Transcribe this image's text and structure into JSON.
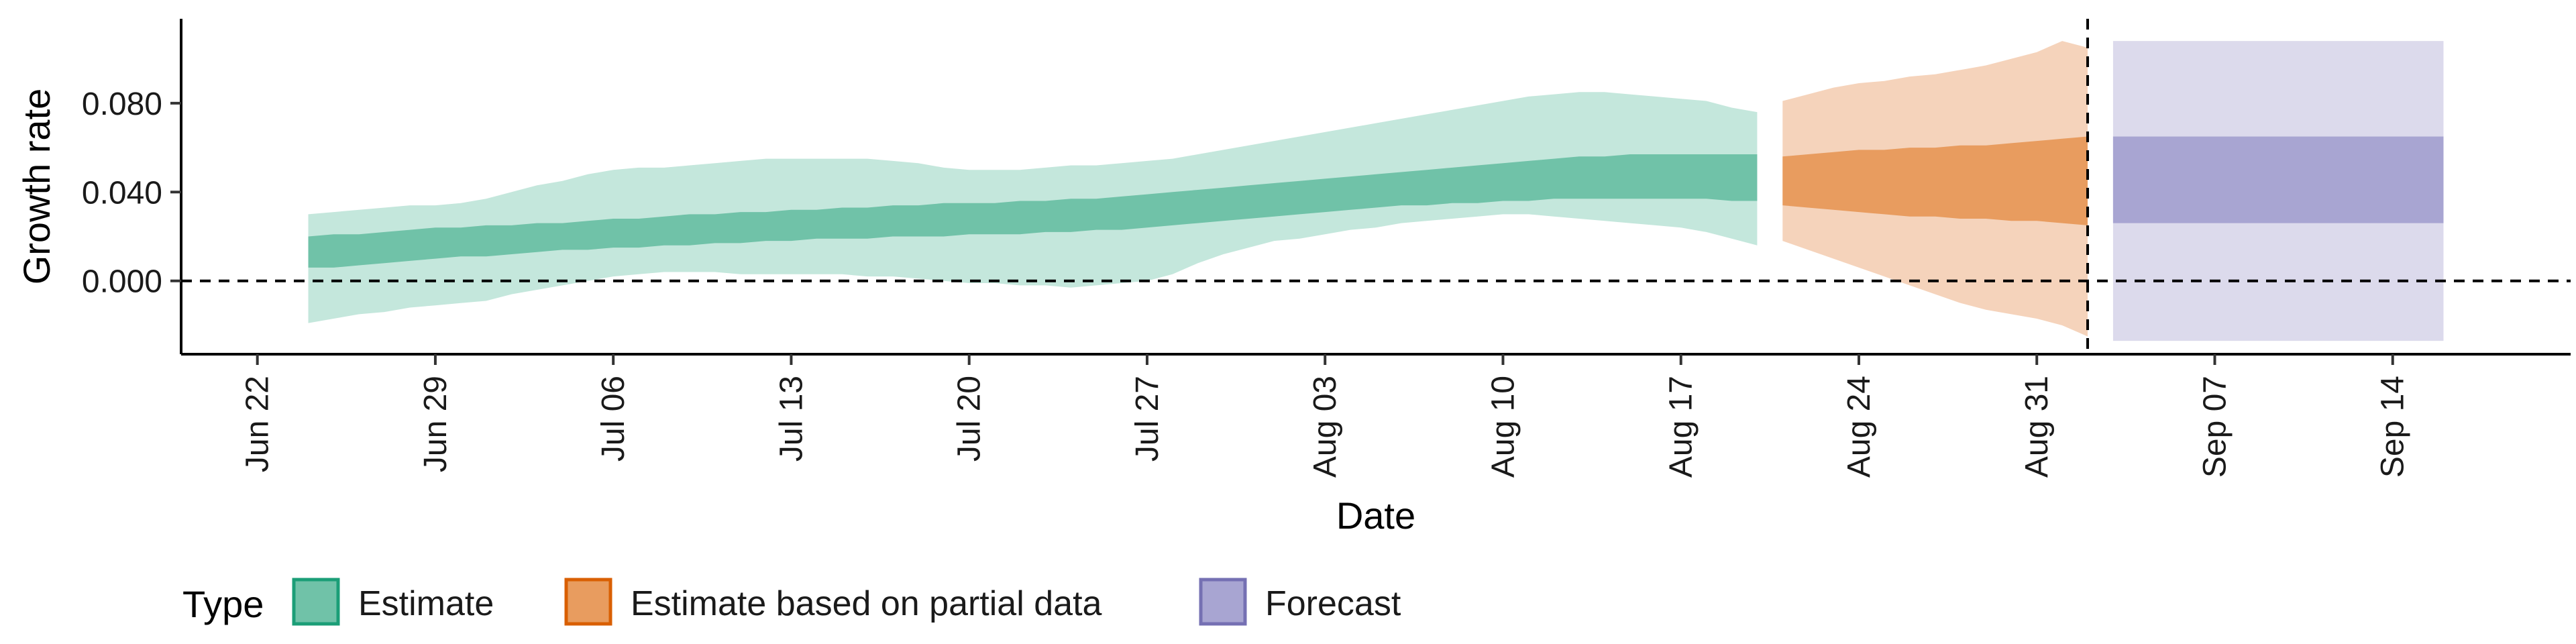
{
  "chart_data": {
    "type": "area",
    "xlabel": "Date",
    "ylabel": "Growth rate",
    "x_range": [
      "2020-06-19",
      "2020-09-21"
    ],
    "ylim": [
      -0.033,
      0.118
    ],
    "y_ticks": [
      0.0,
      0.04,
      0.08
    ],
    "y_tick_labels": [
      "0.000",
      "0.040",
      "0.080"
    ],
    "x_ticks": [
      "2020-06-22",
      "2020-06-29",
      "2020-07-06",
      "2020-07-13",
      "2020-07-20",
      "2020-07-27",
      "2020-08-03",
      "2020-08-10",
      "2020-08-17",
      "2020-08-24",
      "2020-08-31",
      "2020-09-07",
      "2020-09-14"
    ],
    "x_tick_labels": [
      "Jun 22",
      "Jun 29",
      "Jul 06",
      "Jul 13",
      "Jul 20",
      "Jul 27",
      "Aug 03",
      "Aug 10",
      "Aug 17",
      "Aug 24",
      "Aug 31",
      "Sep 07",
      "Sep 14"
    ],
    "reference_lines": {
      "horizontal_y": 0.0,
      "vertical_x": "2020-09-02",
      "style": "dashed"
    },
    "grid": false,
    "legend": {
      "position": "bottom-left",
      "title": "Type",
      "entries": [
        {
          "label": "Estimate",
          "fill": "#70c2a8",
          "border": "#1b9e77"
        },
        {
          "label": "Estimate based on partial data",
          "fill": "#e89c5f",
          "border": "#d95f02"
        },
        {
          "label": "Forecast",
          "fill": "#a8a5d2",
          "border": "#7570b3"
        }
      ]
    },
    "series": [
      {
        "name": "Estimate",
        "outer_color": "#c4e7dc",
        "inner_color": "#70c2a8",
        "x": [
          "2020-06-24",
          "2020-06-25",
          "2020-06-26",
          "2020-06-27",
          "2020-06-28",
          "2020-06-29",
          "2020-06-30",
          "2020-07-01",
          "2020-07-02",
          "2020-07-03",
          "2020-07-04",
          "2020-07-05",
          "2020-07-06",
          "2020-07-07",
          "2020-07-08",
          "2020-07-09",
          "2020-07-10",
          "2020-07-11",
          "2020-07-12",
          "2020-07-13",
          "2020-07-14",
          "2020-07-15",
          "2020-07-16",
          "2020-07-17",
          "2020-07-18",
          "2020-07-19",
          "2020-07-20",
          "2020-07-21",
          "2020-07-22",
          "2020-07-23",
          "2020-07-24",
          "2020-07-25",
          "2020-07-26",
          "2020-07-27",
          "2020-07-28",
          "2020-07-29",
          "2020-07-30",
          "2020-07-31",
          "2020-08-01",
          "2020-08-02",
          "2020-08-03",
          "2020-08-04",
          "2020-08-05",
          "2020-08-06",
          "2020-08-07",
          "2020-08-08",
          "2020-08-09",
          "2020-08-10",
          "2020-08-11",
          "2020-08-12",
          "2020-08-13",
          "2020-08-14",
          "2020-08-15",
          "2020-08-16",
          "2020-08-17",
          "2020-08-18",
          "2020-08-19",
          "2020-08-20"
        ],
        "outer_lower": [
          -0.019,
          -0.017,
          -0.015,
          -0.014,
          -0.012,
          -0.011,
          -0.01,
          -0.009,
          -0.006,
          -0.004,
          -0.002,
          0.0,
          0.002,
          0.003,
          0.004,
          0.004,
          0.004,
          0.003,
          0.003,
          0.003,
          0.003,
          0.003,
          0.002,
          0.002,
          0.001,
          0.0,
          -0.001,
          -0.001,
          -0.002,
          -0.002,
          -0.003,
          -0.002,
          -0.001,
          0.0,
          0.003,
          0.008,
          0.012,
          0.015,
          0.018,
          0.019,
          0.021,
          0.023,
          0.024,
          0.026,
          0.027,
          0.028,
          0.029,
          0.03,
          0.03,
          0.029,
          0.028,
          0.027,
          0.026,
          0.025,
          0.024,
          0.022,
          0.019,
          0.016
        ],
        "inner_lower": [
          0.006,
          0.006,
          0.007,
          0.008,
          0.009,
          0.01,
          0.011,
          0.011,
          0.012,
          0.013,
          0.014,
          0.014,
          0.015,
          0.015,
          0.016,
          0.016,
          0.017,
          0.017,
          0.018,
          0.018,
          0.019,
          0.019,
          0.019,
          0.02,
          0.02,
          0.02,
          0.021,
          0.021,
          0.021,
          0.022,
          0.022,
          0.023,
          0.023,
          0.024,
          0.025,
          0.026,
          0.027,
          0.028,
          0.029,
          0.03,
          0.031,
          0.032,
          0.033,
          0.034,
          0.034,
          0.035,
          0.035,
          0.036,
          0.036,
          0.037,
          0.037,
          0.037,
          0.037,
          0.037,
          0.037,
          0.037,
          0.036,
          0.036
        ],
        "inner_upper": [
          0.02,
          0.021,
          0.021,
          0.022,
          0.023,
          0.024,
          0.024,
          0.025,
          0.025,
          0.026,
          0.026,
          0.027,
          0.028,
          0.028,
          0.029,
          0.03,
          0.03,
          0.031,
          0.031,
          0.032,
          0.032,
          0.033,
          0.033,
          0.034,
          0.034,
          0.035,
          0.035,
          0.035,
          0.036,
          0.036,
          0.037,
          0.037,
          0.038,
          0.039,
          0.04,
          0.041,
          0.042,
          0.043,
          0.044,
          0.045,
          0.046,
          0.047,
          0.048,
          0.049,
          0.05,
          0.051,
          0.052,
          0.053,
          0.054,
          0.055,
          0.056,
          0.056,
          0.057,
          0.057,
          0.057,
          0.057,
          0.057,
          0.057
        ],
        "outer_upper": [
          0.03,
          0.031,
          0.032,
          0.033,
          0.034,
          0.034,
          0.035,
          0.037,
          0.04,
          0.043,
          0.045,
          0.048,
          0.05,
          0.051,
          0.051,
          0.052,
          0.053,
          0.054,
          0.055,
          0.055,
          0.055,
          0.055,
          0.055,
          0.054,
          0.053,
          0.051,
          0.05,
          0.05,
          0.05,
          0.051,
          0.052,
          0.052,
          0.053,
          0.054,
          0.055,
          0.057,
          0.059,
          0.061,
          0.063,
          0.065,
          0.067,
          0.069,
          0.071,
          0.073,
          0.075,
          0.077,
          0.079,
          0.081,
          0.083,
          0.084,
          0.085,
          0.085,
          0.084,
          0.083,
          0.082,
          0.081,
          0.078,
          0.076
        ]
      },
      {
        "name": "Estimate based on partial data",
        "outer_color": "#f5d3bb",
        "inner_color": "#e89c5f",
        "x": [
          "2020-08-21",
          "2020-08-22",
          "2020-08-23",
          "2020-08-24",
          "2020-08-25",
          "2020-08-26",
          "2020-08-27",
          "2020-08-28",
          "2020-08-29",
          "2020-08-30",
          "2020-08-31",
          "2020-09-01",
          "2020-09-02"
        ],
        "outer_lower": [
          0.018,
          0.014,
          0.01,
          0.006,
          0.002,
          -0.002,
          -0.006,
          -0.01,
          -0.013,
          -0.015,
          -0.017,
          -0.02,
          -0.025
        ],
        "inner_lower": [
          0.034,
          0.033,
          0.032,
          0.031,
          0.03,
          0.029,
          0.029,
          0.028,
          0.028,
          0.027,
          0.027,
          0.026,
          0.025
        ],
        "inner_upper": [
          0.056,
          0.057,
          0.058,
          0.059,
          0.059,
          0.06,
          0.06,
          0.061,
          0.061,
          0.062,
          0.063,
          0.064,
          0.065
        ],
        "outer_upper": [
          0.081,
          0.084,
          0.087,
          0.089,
          0.09,
          0.092,
          0.093,
          0.095,
          0.097,
          0.1,
          0.103,
          0.108,
          0.105
        ]
      },
      {
        "name": "Forecast",
        "outer_color": "#dcdaec",
        "inner_color": "#a8a5d2",
        "x": [
          "2020-09-03",
          "2020-09-16"
        ],
        "outer_lower": [
          -0.027,
          -0.027
        ],
        "inner_lower": [
          0.026,
          0.026
        ],
        "inner_upper": [
          0.065,
          0.065
        ],
        "outer_upper": [
          0.108,
          0.108
        ]
      }
    ]
  }
}
